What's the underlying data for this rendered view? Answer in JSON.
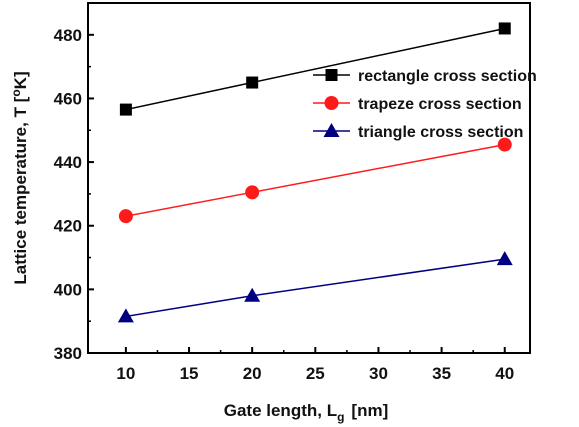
{
  "chart_data": {
    "type": "line",
    "xlabel": "Gate length, L",
    "xlabel_sub": "g",
    "xlabel_unit": "[nm]",
    "ylabel": "Lattice temperature, T [",
    "ylabel_sup": "o",
    "ylabel_unit": "K]",
    "xlim": [
      7,
      42
    ],
    "ylim": [
      380,
      490
    ],
    "xticks": [
      10,
      15,
      20,
      25,
      30,
      35,
      40
    ],
    "yticks": [
      380,
      400,
      420,
      440,
      460,
      480
    ],
    "grid": false,
    "legend_position": "top-right",
    "x": [
      10,
      20,
      40
    ],
    "series": [
      {
        "name": "rectangle cross section",
        "marker": "square",
        "color": "#000000",
        "values": [
          456.5,
          465,
          482
        ]
      },
      {
        "name": "trapeze cross section",
        "marker": "circle",
        "color": "#ff1a1a",
        "values": [
          423,
          430.5,
          445.5
        ]
      },
      {
        "name": "triangle cross section",
        "marker": "triangle",
        "color": "#000080",
        "values": [
          391.5,
          398,
          409.5
        ]
      }
    ]
  }
}
